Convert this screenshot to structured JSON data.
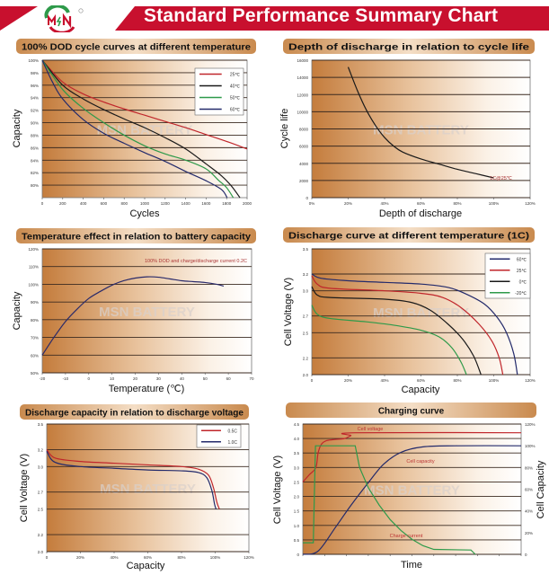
{
  "header": {
    "title": "Standard Performance Summary Chart",
    "logo_text": "MSN",
    "registered_mark": "®",
    "accent_color": "#c8102e"
  },
  "watermark": "MSN BATTERY",
  "chart_data": [
    {
      "type": "line",
      "title": "100% DOD cycle curves at different temperature",
      "xlabel": "Cycles",
      "ylabel": "Capacity",
      "xlim": [
        0,
        2000
      ],
      "ylim": [
        78,
        100
      ],
      "xticks": [
        0,
        200,
        400,
        600,
        800,
        1000,
        1200,
        1400,
        1600,
        1800,
        2000
      ],
      "xtick_labels": [
        "0",
        "200",
        "400",
        "600",
        "800",
        "1000",
        "1200",
        "1400",
        "1600",
        "1800",
        "2000"
      ],
      "yticks": [
        80,
        82,
        84,
        86,
        88,
        90,
        92,
        94,
        96,
        98,
        100
      ],
      "ytick_labels": [
        "80%",
        "82%",
        "84%",
        "86%",
        "88%",
        "90%",
        "92%",
        "94%",
        "96%",
        "98%",
        "100%"
      ],
      "grid": true,
      "legend": "top-right",
      "series": [
        {
          "name": "25℃",
          "color": "#c0262b",
          "points": [
            [
              0,
              100
            ],
            [
              200,
              96.5
            ],
            [
              400,
              94.6
            ],
            [
              600,
              93.3
            ],
            [
              800,
              92.2
            ],
            [
              1000,
              91.2
            ],
            [
              1200,
              90.2
            ],
            [
              1400,
              89.2
            ],
            [
              1600,
              88.1
            ],
            [
              1800,
              87
            ],
            [
              2000,
              85.8
            ]
          ]
        },
        {
          "name": "40℃",
          "color": "#1a1a1a",
          "points": [
            [
              0,
              100
            ],
            [
              200,
              96
            ],
            [
              400,
              93.8
            ],
            [
              600,
              92.1
            ],
            [
              800,
              90.6
            ],
            [
              1000,
              89.2
            ],
            [
              1200,
              87.6
            ],
            [
              1400,
              85.8
            ],
            [
              1600,
              83.4
            ],
            [
              1750,
              81.5
            ],
            [
              1850,
              79.8
            ],
            [
              1930,
              78
            ]
          ]
        },
        {
          "name": "50℃",
          "color": "#2e9a4a",
          "points": [
            [
              0,
              100
            ],
            [
              200,
              95.3
            ],
            [
              400,
              92.3
            ],
            [
              600,
              90
            ],
            [
              800,
              88
            ],
            [
              1000,
              86.3
            ],
            [
              1200,
              85
            ],
            [
              1400,
              84
            ],
            [
              1600,
              82.6
            ],
            [
              1720,
              80.8
            ],
            [
              1800,
              79.6
            ],
            [
              1865,
              78
            ]
          ]
        },
        {
          "name": "60℃",
          "color": "#232a6b",
          "points": [
            [
              0,
              100
            ],
            [
              100,
              96.5
            ],
            [
              200,
              93.8
            ],
            [
              400,
              90.5
            ],
            [
              600,
              88.3
            ],
            [
              800,
              86.7
            ],
            [
              1000,
              85.2
            ],
            [
              1200,
              83.8
            ],
            [
              1400,
              82.2
            ],
            [
              1600,
              80.7
            ],
            [
              1750,
              79.3
            ],
            [
              1805,
              78
            ]
          ]
        }
      ]
    },
    {
      "type": "line",
      "title": "Depth of discharge in relation to cycle life",
      "xlabel": "Depth of discharge",
      "ylabel": "Cycle life",
      "xlim": [
        0,
        120
      ],
      "ylim": [
        0,
        16000
      ],
      "xticks": [
        0,
        20,
        40,
        60,
        80,
        100,
        120
      ],
      "xtick_labels": [
        "0%",
        "20%",
        "40%",
        "60%",
        "80%",
        "100%",
        "120%"
      ],
      "yticks": [
        0,
        2000,
        4000,
        6000,
        8000,
        10000,
        12000,
        14000,
        16000
      ],
      "ytick_labels": [
        "0",
        "2000",
        "4000",
        "6000",
        "8000",
        "10000",
        "12000",
        "14000",
        "16000"
      ],
      "grid": true,
      "annotations": [
        "1C@25℃"
      ],
      "series": [
        {
          "color": "#1a1a1a",
          "points": [
            [
              20,
              15200
            ],
            [
              25,
              12500
            ],
            [
              30,
              10200
            ],
            [
              35,
              8400
            ],
            [
              40,
              7000
            ],
            [
              45,
              6000
            ],
            [
              50,
              5300
            ],
            [
              60,
              4500
            ],
            [
              70,
              3900
            ],
            [
              80,
              3300
            ],
            [
              90,
              2800
            ],
            [
              100,
              2300
            ]
          ]
        }
      ]
    },
    {
      "type": "line",
      "title": "Temperature effect in relation to battery capacity",
      "xlabel": "Temperature (℃)",
      "ylabel": "Capacity",
      "xlim": [
        -20,
        70
      ],
      "ylim": [
        50,
        120
      ],
      "xticks": [
        -20,
        -10,
        0,
        10,
        20,
        30,
        40,
        50,
        60,
        70
      ],
      "xtick_labels": [
        "-20",
        "-10",
        "0",
        "10",
        "20",
        "30",
        "40",
        "50",
        "60",
        "70"
      ],
      "yticks": [
        50,
        60,
        70,
        80,
        90,
        100,
        110,
        120
      ],
      "ytick_labels": [
        "50%",
        "60%",
        "70%",
        "80%",
        "90%",
        "100%",
        "110%",
        "120%"
      ],
      "grid": true,
      "annotations": [
        "100% DOD and charge/discharge current 0.2C"
      ],
      "series": [
        {
          "color": "#2a2a6a",
          "points": [
            [
              -20,
              60
            ],
            [
              -15,
              70
            ],
            [
              -10,
              79
            ],
            [
              -5,
              86
            ],
            [
              0,
              92
            ],
            [
              5,
              96
            ],
            [
              10,
              99.5
            ],
            [
              15,
              102
            ],
            [
              20,
              103.5
            ],
            [
              25,
              104.2
            ],
            [
              30,
              104
            ],
            [
              35,
              103
            ],
            [
              40,
              102
            ],
            [
              45,
              101.5
            ],
            [
              50,
              101
            ],
            [
              55,
              100
            ],
            [
              58,
              99
            ]
          ]
        }
      ]
    },
    {
      "type": "line",
      "title": "Discharge curve at different temperature (1C)",
      "xlabel": "Capacity",
      "ylabel": "Cell Voltage (V)",
      "xlim": [
        0,
        120
      ],
      "ylim": [
        2.0,
        3.5
      ],
      "xticks": [
        0,
        20,
        40,
        60,
        80,
        100,
        120
      ],
      "xtick_labels": [
        "0",
        "20%",
        "40%",
        "60%",
        "80%",
        "100%",
        "120%"
      ],
      "yticks": [
        2.0,
        2.2,
        2.5,
        2.7,
        3.0,
        3.2,
        3.5
      ],
      "ytick_labels": [
        "2.0",
        "2.2",
        "2.5",
        "2.7",
        "3.0",
        "3.2",
        "3.5"
      ],
      "grid": true,
      "legend": "top-right",
      "series": [
        {
          "name": "60℃",
          "color": "#232a6b",
          "points": [
            [
              0,
              3.2
            ],
            [
              5,
              3.15
            ],
            [
              20,
              3.12
            ],
            [
              40,
              3.1
            ],
            [
              60,
              3.08
            ],
            [
              75,
              3.04
            ],
            [
              85,
              2.96
            ],
            [
              95,
              2.84
            ],
            [
              102,
              2.68
            ],
            [
              107,
              2.5
            ],
            [
              111,
              2.25
            ],
            [
              113,
              2.0
            ]
          ]
        },
        {
          "name": "25℃",
          "color": "#c0262b",
          "points": [
            [
              0,
              3.18
            ],
            [
              3,
              3.08
            ],
            [
              10,
              3.03
            ],
            [
              40,
              3.0
            ],
            [
              60,
              2.97
            ],
            [
              72,
              2.92
            ],
            [
              82,
              2.8
            ],
            [
              92,
              2.6
            ],
            [
              99,
              2.4
            ],
            [
              103,
              2.2
            ],
            [
              105,
              2.0
            ]
          ]
        },
        {
          "name": "0℃",
          "color": "#1a1a1a",
          "points": [
            [
              0,
              3.05
            ],
            [
              3,
              2.95
            ],
            [
              10,
              2.92
            ],
            [
              40,
              2.9
            ],
            [
              55,
              2.86
            ],
            [
              65,
              2.77
            ],
            [
              75,
              2.6
            ],
            [
              83,
              2.42
            ],
            [
              89,
              2.22
            ],
            [
              93,
              2.0
            ]
          ]
        },
        {
          "name": "-20℃",
          "color": "#2e9a4a",
          "points": [
            [
              0,
              2.83
            ],
            [
              3,
              2.72
            ],
            [
              10,
              2.67
            ],
            [
              30,
              2.63
            ],
            [
              45,
              2.59
            ],
            [
              60,
              2.53
            ],
            [
              70,
              2.45
            ],
            [
              77,
              2.32
            ],
            [
              82,
              2.15
            ],
            [
              85,
              2.0
            ]
          ]
        }
      ]
    },
    {
      "type": "line",
      "title": "Discharge capacity in relation to discharge voltage",
      "xlabel": "Capacity",
      "ylabel": "Cell Voltage (V)",
      "xlim": [
        0,
        120
      ],
      "ylim": [
        2.0,
        3.5
      ],
      "xticks": [
        0,
        20,
        40,
        60,
        80,
        100,
        120
      ],
      "xtick_labels": [
        "0",
        "20%",
        "40%",
        "60%",
        "80%",
        "100%",
        "120%"
      ],
      "yticks": [
        2.0,
        2.2,
        2.5,
        2.7,
        3.0,
        3.2,
        3.5
      ],
      "ytick_labels": [
        "2.0",
        "2.2",
        "2.5",
        "2.7",
        "3.0",
        "3.2",
        "3.5"
      ],
      "grid": true,
      "legend": "top-right",
      "series": [
        {
          "name": "0.5C",
          "color": "#c0262b",
          "points": [
            [
              0,
              3.2
            ],
            [
              5,
              3.1
            ],
            [
              20,
              3.06
            ],
            [
              40,
              3.04
            ],
            [
              60,
              3.02
            ],
            [
              80,
              3.0
            ],
            [
              90,
              2.97
            ],
            [
              96,
              2.9
            ],
            [
              99,
              2.75
            ],
            [
              101,
              2.58
            ],
            [
              102.5,
              2.5
            ]
          ]
        },
        {
          "name": "1.0C",
          "color": "#232a6b",
          "points": [
            [
              0,
              3.18
            ],
            [
              5,
              3.05
            ],
            [
              20,
              3.0
            ],
            [
              40,
              2.98
            ],
            [
              60,
              2.96
            ],
            [
              80,
              2.95
            ],
            [
              90,
              2.93
            ],
            [
              95,
              2.87
            ],
            [
              98,
              2.72
            ],
            [
              99.6,
              2.56
            ],
            [
              100.5,
              2.5
            ]
          ]
        }
      ]
    },
    {
      "type": "line",
      "title": "Charging curve",
      "xlabel": "Time",
      "ylabel": "Cell Voltage (V)",
      "ylabel_right": "Cell Capacity",
      "xlim": [
        0,
        10
      ],
      "ylim": [
        0,
        4.5
      ],
      "ylim_right": [
        0,
        120
      ],
      "xticks": [
        0,
        1,
        2,
        3,
        4,
        5,
        6,
        7,
        8,
        9,
        10
      ],
      "yticks": [
        0,
        0.5,
        1.0,
        1.5,
        2.0,
        2.5,
        3.0,
        3.5,
        4.0,
        4.5
      ],
      "ytick_labels": [
        "0",
        "0.5",
        "1.0",
        "1.5",
        "2.0",
        "2.5",
        "3.0",
        "3.5",
        "4.0",
        "4.5"
      ],
      "yticks_right": [
        0,
        20,
        40,
        60,
        80,
        100,
        120
      ],
      "ytick_labels_right": [
        "0",
        "20%",
        "40%",
        "60%",
        "80%",
        "100%",
        "120%"
      ],
      "grid": true,
      "series": [
        {
          "name": "Cell voltage",
          "axis": "left",
          "color": "#c0262b",
          "points": [
            [
              0,
              2.5
            ],
            [
              0.3,
              2.75
            ],
            [
              0.6,
              3.0
            ],
            [
              0.7,
              3.5
            ],
            [
              0.85,
              3.8
            ],
            [
              1.1,
              3.93
            ],
            [
              1.5,
              3.97
            ],
            [
              1.9,
              4.0
            ],
            [
              2.2,
              4.1
            ],
            [
              2.4,
              4.2
            ],
            [
              10,
              4.2
            ]
          ]
        },
        {
          "name": "Cell capacity",
          "axis": "right",
          "color": "#232a6b",
          "points": [
            [
              0,
              0
            ],
            [
              0.7,
              3
            ],
            [
              1.5,
              25
            ],
            [
              2.2,
              45
            ],
            [
              3,
              66
            ],
            [
              3.7,
              83
            ],
            [
              4.5,
              94
            ],
            [
              5.5,
              99
            ],
            [
              7,
              100
            ],
            [
              10,
              100
            ]
          ]
        },
        {
          "name": "Charge current",
          "axis": "left",
          "color": "#2e9a4a",
          "points": [
            [
              0,
              0.4
            ],
            [
              0.48,
              0.4
            ],
            [
              0.58,
              3.75
            ],
            [
              2.4,
              3.75
            ],
            [
              2.6,
              3.0
            ],
            [
              3.0,
              2.3
            ],
            [
              3.5,
              1.7
            ],
            [
              4.0,
              1.2
            ],
            [
              4.5,
              0.82
            ],
            [
              5.0,
              0.52
            ],
            [
              5.5,
              0.3
            ],
            [
              6.0,
              0.17
            ],
            [
              7.7,
              0.15
            ],
            [
              7.9,
              0
            ]
          ]
        }
      ]
    }
  ]
}
